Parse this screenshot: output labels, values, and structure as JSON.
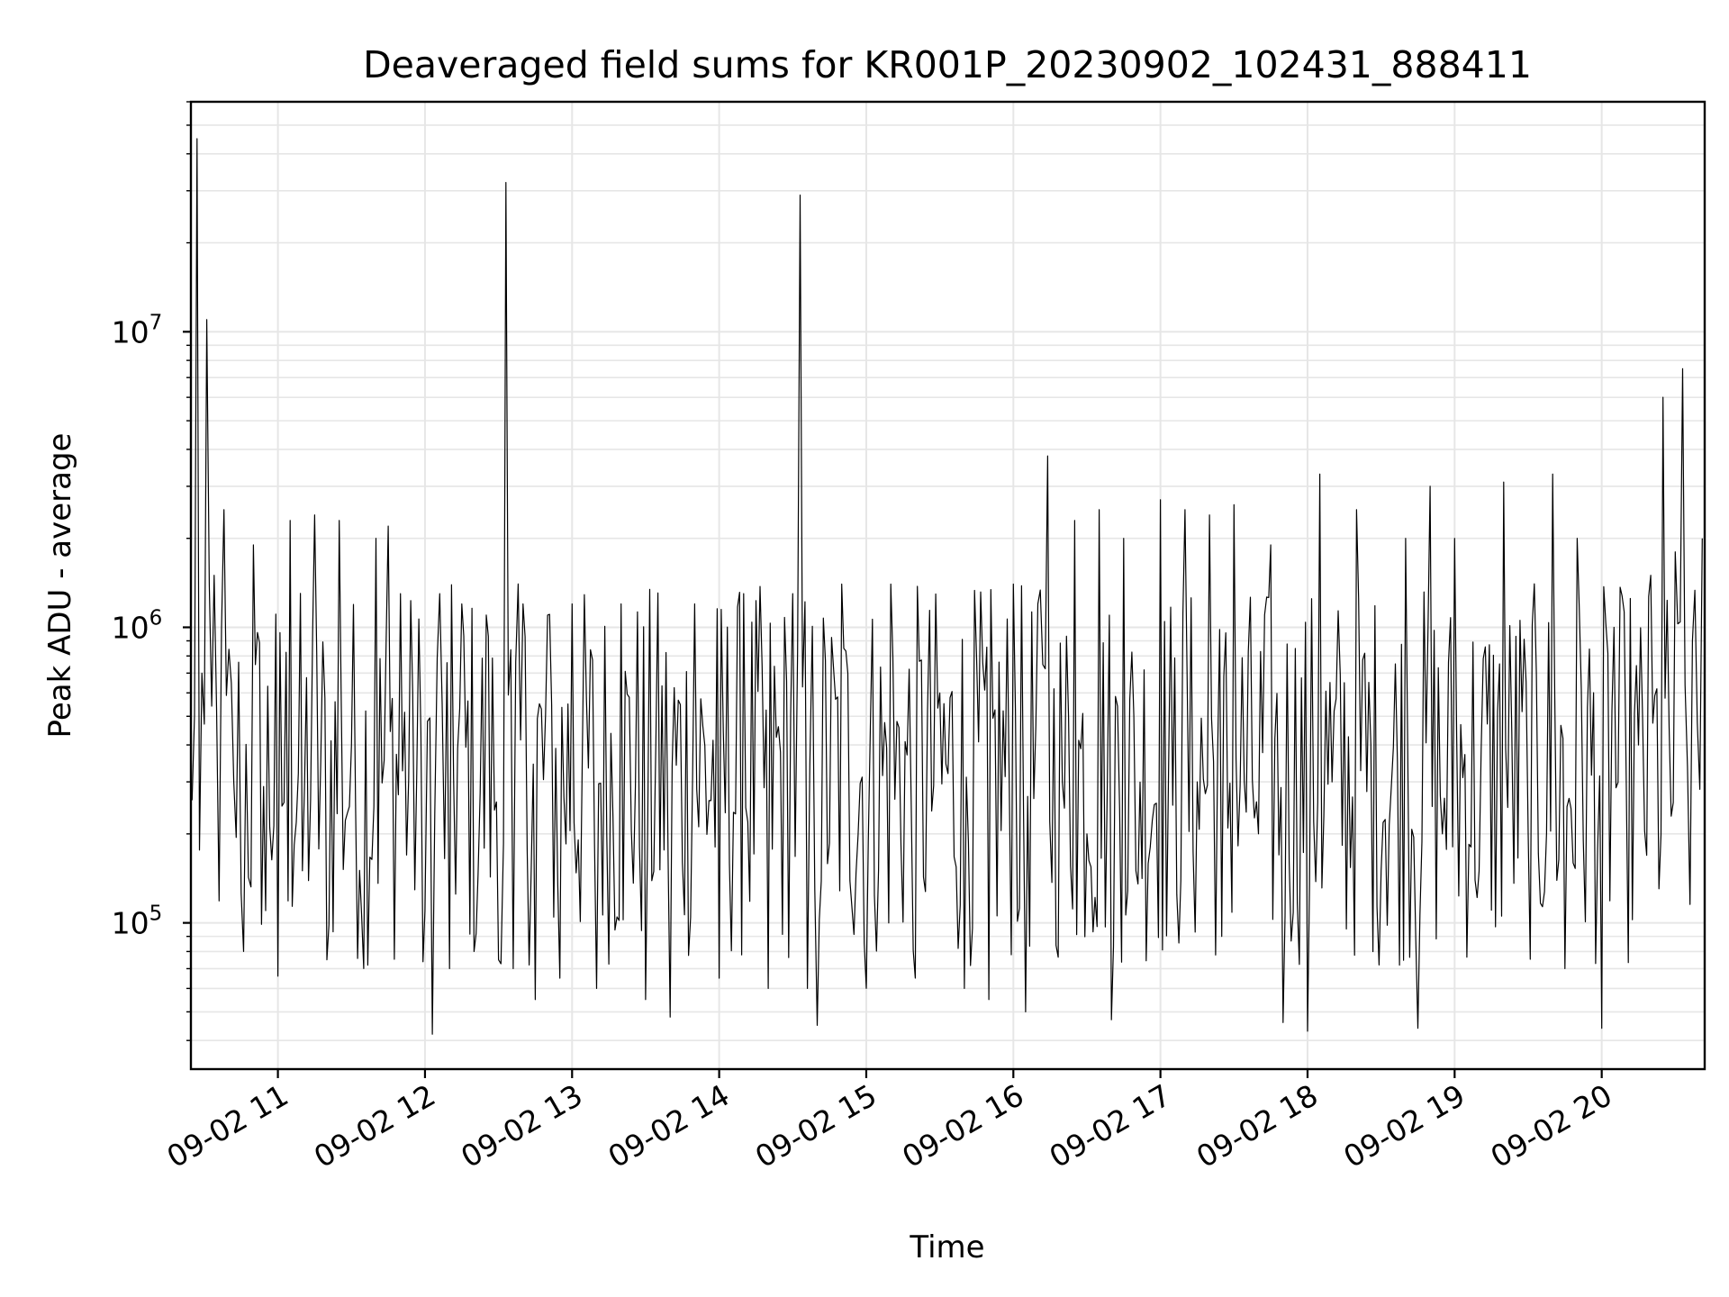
{
  "chart_data": {
    "type": "line",
    "title": "Deaveraged field sums for KR001P_20230902_102431_888411",
    "xlabel": "Time",
    "ylabel": "Peak ADU - average",
    "yscale": "log",
    "ylim": [
      32000,
      60000000
    ],
    "xlim": [
      "2023-09-02 10:24:31",
      "2023-09-02 20:42:00"
    ],
    "grid": "major and minor",
    "line_color": "#000000",
    "x_ticks": [
      {
        "label": "09-02 11",
        "value": "2023-09-02 11:00"
      },
      {
        "label": "09-02 12",
        "value": "2023-09-02 12:00"
      },
      {
        "label": "09-02 13",
        "value": "2023-09-02 13:00"
      },
      {
        "label": "09-02 14",
        "value": "2023-09-02 14:00"
      },
      {
        "label": "09-02 15",
        "value": "2023-09-02 15:00"
      },
      {
        "label": "09-02 16",
        "value": "2023-09-02 16:00"
      },
      {
        "label": "09-02 17",
        "value": "2023-09-02 17:00"
      },
      {
        "label": "09-02 18",
        "value": "2023-09-02 18:00"
      },
      {
        "label": "09-02 19",
        "value": "2023-09-02 19:00"
      },
      {
        "label": "09-02 20",
        "value": "2023-09-02 20:00"
      }
    ],
    "y_ticks": [
      {
        "base": "10",
        "exp": "5",
        "value": 100000
      },
      {
        "base": "10",
        "exp": "6",
        "value": 1000000
      },
      {
        "base": "10",
        "exp": "7",
        "value": 10000000
      }
    ],
    "series": [
      {
        "points": [
          [
            "2023-09-02 10:25",
            260000
          ],
          [
            "2023-09-02 10:27",
            45000000
          ],
          [
            "2023-09-02 10:29",
            700000
          ],
          [
            "2023-09-02 10:31",
            11000000
          ],
          [
            "2023-09-02 10:34",
            1500000
          ],
          [
            "2023-09-02 10:38",
            2500000
          ],
          [
            "2023-09-02 10:42",
            300000
          ],
          [
            "2023-09-02 10:46",
            80000
          ],
          [
            "2023-09-02 10:50",
            1900000
          ],
          [
            "2023-09-02 10:55",
            110000
          ],
          [
            "2023-09-02 11:00",
            66000
          ],
          [
            "2023-09-02 11:05",
            2300000
          ],
          [
            "2023-09-02 11:10",
            150000
          ],
          [
            "2023-09-02 11:15",
            2400000
          ],
          [
            "2023-09-02 11:20",
            75000
          ],
          [
            "2023-09-02 11:25",
            2300000
          ],
          [
            "2023-09-02 11:30",
            400000
          ],
          [
            "2023-09-02 11:35",
            70000
          ],
          [
            "2023-09-02 11:40",
            2000000
          ],
          [
            "2023-09-02 11:45",
            2200000
          ],
          [
            "2023-09-02 11:50",
            1300000
          ],
          [
            "2023-09-02 11:55",
            600000
          ],
          [
            "2023-09-02 12:00",
            110000
          ],
          [
            "2023-09-02 12:03",
            42000
          ],
          [
            "2023-09-02 12:06",
            1300000
          ],
          [
            "2023-09-02 12:10",
            70000
          ],
          [
            "2023-09-02 12:15",
            1200000
          ],
          [
            "2023-09-02 12:20",
            80000
          ],
          [
            "2023-09-02 12:25",
            1100000
          ],
          [
            "2023-09-02 12:30",
            75000
          ],
          [
            "2023-09-02 12:33",
            32000000
          ],
          [
            "2023-09-02 12:36",
            70000
          ],
          [
            "2023-09-02 12:40",
            1200000
          ],
          [
            "2023-09-02 12:45",
            55000
          ],
          [
            "2023-09-02 12:50",
            1100000
          ],
          [
            "2023-09-02 12:55",
            65000
          ],
          [
            "2023-09-02 13:00",
            1200000
          ],
          [
            "2023-09-02 13:10",
            60000
          ],
          [
            "2023-09-02 13:20",
            1200000
          ],
          [
            "2023-09-02 13:30",
            55000
          ],
          [
            "2023-09-02 13:40",
            48000
          ],
          [
            "2023-09-02 13:50",
            1200000
          ],
          [
            "2023-09-02 14:00",
            65000
          ],
          [
            "2023-09-02 14:10",
            1300000
          ],
          [
            "2023-09-02 14:20",
            60000
          ],
          [
            "2023-09-02 14:30",
            1300000
          ],
          [
            "2023-09-02 14:33",
            29000000
          ],
          [
            "2023-09-02 14:36",
            60000
          ],
          [
            "2023-09-02 14:40",
            45000
          ],
          [
            "2023-09-02 14:50",
            1400000
          ],
          [
            "2023-09-02 15:00",
            60000
          ],
          [
            "2023-09-02 15:10",
            1400000
          ],
          [
            "2023-09-02 15:20",
            65000
          ],
          [
            "2023-09-02 15:30",
            600000
          ],
          [
            "2023-09-02 15:40",
            60000
          ],
          [
            "2023-09-02 15:50",
            55000
          ],
          [
            "2023-09-02 16:00",
            1400000
          ],
          [
            "2023-09-02 16:05",
            50000
          ],
          [
            "2023-09-02 16:10",
            1200000
          ],
          [
            "2023-09-02 16:14",
            3800000
          ],
          [
            "2023-09-02 16:20",
            300000
          ],
          [
            "2023-09-02 16:25",
            2300000
          ],
          [
            "2023-09-02 16:30",
            200000
          ],
          [
            "2023-09-02 16:35",
            2500000
          ],
          [
            "2023-09-02 16:40",
            47000
          ],
          [
            "2023-09-02 16:45",
            2000000
          ],
          [
            "2023-09-02 16:50",
            150000
          ],
          [
            "2023-09-02 17:00",
            2700000
          ],
          [
            "2023-09-02 17:05",
            250000
          ],
          [
            "2023-09-02 17:10",
            2500000
          ],
          [
            "2023-09-02 17:15",
            300000
          ],
          [
            "2023-09-02 17:20",
            2400000
          ],
          [
            "2023-09-02 17:25",
            90000
          ],
          [
            "2023-09-02 17:30",
            2600000
          ],
          [
            "2023-09-02 17:40",
            200000
          ],
          [
            "2023-09-02 17:45",
            1900000
          ],
          [
            "2023-09-02 17:50",
            46000
          ],
          [
            "2023-09-02 18:00",
            43000
          ],
          [
            "2023-09-02 18:05",
            3300000
          ],
          [
            "2023-09-02 18:10",
            300000
          ],
          [
            "2023-09-02 18:20",
            2500000
          ],
          [
            "2023-09-02 18:30",
            150000
          ],
          [
            "2023-09-02 18:40",
            2000000
          ],
          [
            "2023-09-02 18:45",
            44000
          ],
          [
            "2023-09-02 18:50",
            3000000
          ],
          [
            "2023-09-02 18:55",
            200000
          ],
          [
            "2023-09-02 19:00",
            2000000
          ],
          [
            "2023-09-02 19:10",
            150000
          ],
          [
            "2023-09-02 19:20",
            3100000
          ],
          [
            "2023-09-02 19:30",
            200000
          ],
          [
            "2023-09-02 19:40",
            3300000
          ],
          [
            "2023-09-02 19:45",
            70000
          ],
          [
            "2023-09-02 19:50",
            2000000
          ],
          [
            "2023-09-02 20:00",
            44000
          ],
          [
            "2023-09-02 20:05",
            1000000
          ],
          [
            "2023-09-02 20:10",
            300000
          ],
          [
            "2023-09-02 20:15",
            400000
          ],
          [
            "2023-09-02 20:20",
            1500000
          ],
          [
            "2023-09-02 20:25",
            6000000
          ],
          [
            "2023-09-02 20:30",
            1800000
          ],
          [
            "2023-09-02 20:33",
            7500000
          ],
          [
            "2023-09-02 20:37",
            900000
          ],
          [
            "2023-09-02 20:41",
            2000000
          ]
        ]
      }
    ]
  }
}
